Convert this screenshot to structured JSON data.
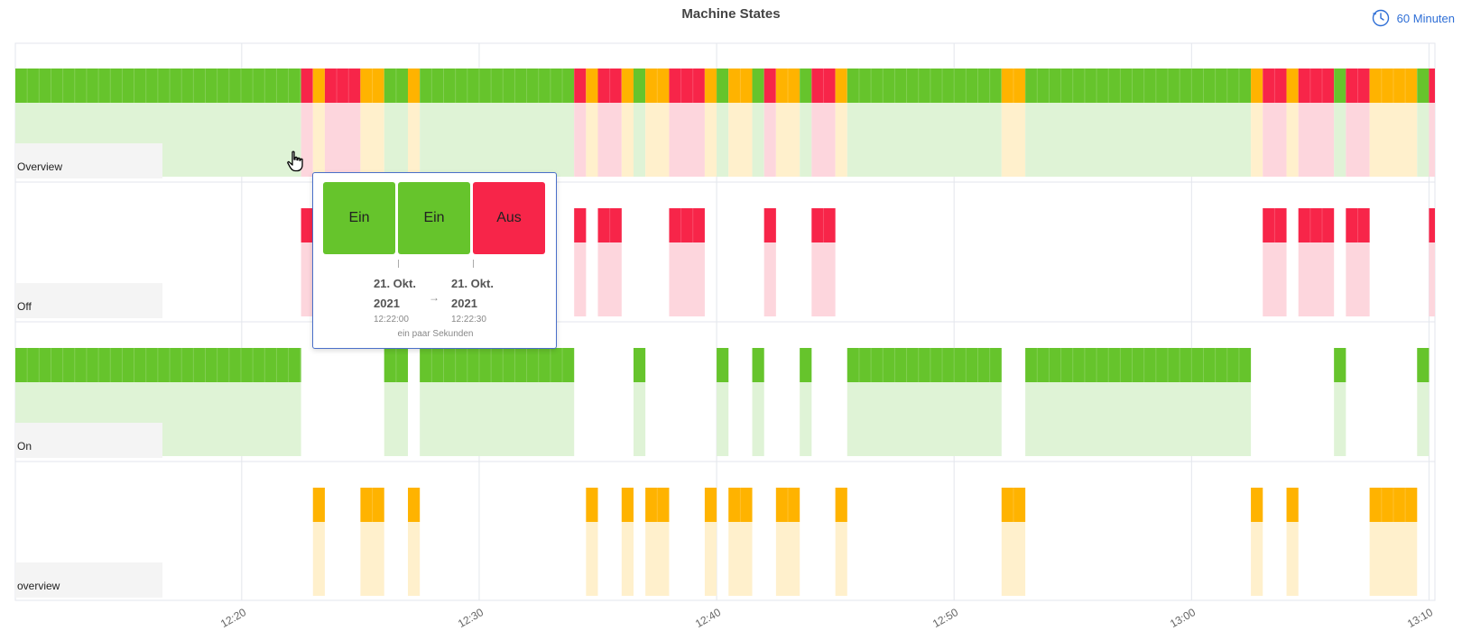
{
  "title": "Machine States",
  "range_button": {
    "label": "60 Minuten",
    "icon": "clock-icon"
  },
  "colors": {
    "on": "#66c42c",
    "off": "#f72549",
    "idle": "#ffb300",
    "on_light": "#dff3d6",
    "off_light": "#fdd6dd",
    "idle_light": "#fff0cc"
  },
  "lanes": [
    {
      "label": "Overview",
      "type": "overview"
    },
    {
      "label": "Off",
      "type": "off"
    },
    {
      "label": "On",
      "type": "on"
    },
    {
      "label": "overview",
      "type": "idle"
    }
  ],
  "x_axis": {
    "ticks": [
      "12:20",
      "12:30",
      "12:40",
      "12:50",
      "13:00",
      "13:10"
    ]
  },
  "chart_data": {
    "type": "timeline",
    "title": "Machine States",
    "x_start": "12:10:28",
    "x_end": "13:10:15",
    "segments": [
      {
        "start": "12:10:28",
        "end": "12:22:30",
        "state": "on"
      },
      {
        "start": "12:22:30",
        "end": "12:23:00",
        "state": "off"
      },
      {
        "start": "12:23:00",
        "end": "12:23:30",
        "state": "idle"
      },
      {
        "start": "12:23:30",
        "end": "12:25:00",
        "state": "off"
      },
      {
        "start": "12:25:00",
        "end": "12:26:00",
        "state": "idle"
      },
      {
        "start": "12:26:00",
        "end": "12:27:00",
        "state": "on"
      },
      {
        "start": "12:27:00",
        "end": "12:27:30",
        "state": "idle"
      },
      {
        "start": "12:27:30",
        "end": "12:34:00",
        "state": "on"
      },
      {
        "start": "12:34:00",
        "end": "12:34:30",
        "state": "off"
      },
      {
        "start": "12:34:30",
        "end": "12:35:00",
        "state": "idle"
      },
      {
        "start": "12:35:00",
        "end": "12:36:00",
        "state": "off"
      },
      {
        "start": "12:36:00",
        "end": "12:36:30",
        "state": "idle"
      },
      {
        "start": "12:36:30",
        "end": "12:37:00",
        "state": "on"
      },
      {
        "start": "12:37:00",
        "end": "12:38:00",
        "state": "idle"
      },
      {
        "start": "12:38:00",
        "end": "12:39:30",
        "state": "off"
      },
      {
        "start": "12:39:30",
        "end": "12:40:00",
        "state": "idle"
      },
      {
        "start": "12:40:00",
        "end": "12:40:30",
        "state": "on"
      },
      {
        "start": "12:40:30",
        "end": "12:41:30",
        "state": "idle"
      },
      {
        "start": "12:41:30",
        "end": "12:42:00",
        "state": "on"
      },
      {
        "start": "12:42:00",
        "end": "12:42:30",
        "state": "off"
      },
      {
        "start": "12:42:30",
        "end": "12:43:30",
        "state": "idle"
      },
      {
        "start": "12:43:30",
        "end": "12:44:00",
        "state": "on"
      },
      {
        "start": "12:44:00",
        "end": "12:45:00",
        "state": "off"
      },
      {
        "start": "12:45:00",
        "end": "12:45:30",
        "state": "idle"
      },
      {
        "start": "12:45:30",
        "end": "12:52:00",
        "state": "on"
      },
      {
        "start": "12:52:00",
        "end": "12:53:00",
        "state": "idle"
      },
      {
        "start": "12:53:00",
        "end": "13:02:30",
        "state": "on"
      },
      {
        "start": "13:02:30",
        "end": "13:03:00",
        "state": "idle"
      },
      {
        "start": "13:03:00",
        "end": "13:04:00",
        "state": "off"
      },
      {
        "start": "13:04:00",
        "end": "13:04:30",
        "state": "idle"
      },
      {
        "start": "13:04:30",
        "end": "13:06:00",
        "state": "off"
      },
      {
        "start": "13:06:00",
        "end": "13:06:30",
        "state": "on"
      },
      {
        "start": "13:06:30",
        "end": "13:07:30",
        "state": "off"
      },
      {
        "start": "13:07:30",
        "end": "13:09:30",
        "state": "idle"
      },
      {
        "start": "13:09:30",
        "end": "13:10:00",
        "state": "on"
      },
      {
        "start": "13:10:00",
        "end": "13:10:15",
        "state": "off"
      }
    ]
  },
  "tooltip": {
    "states": [
      "Ein",
      "Ein",
      "Aus"
    ],
    "from": {
      "date_line1": "21. Okt.",
      "date_line2": "2021",
      "time": "12:22:00"
    },
    "to": {
      "date_line1": "21. Okt.",
      "date_line2": "2021",
      "time": "12:22:30"
    },
    "arrow": "→",
    "duration": "ein paar Sekunden"
  }
}
